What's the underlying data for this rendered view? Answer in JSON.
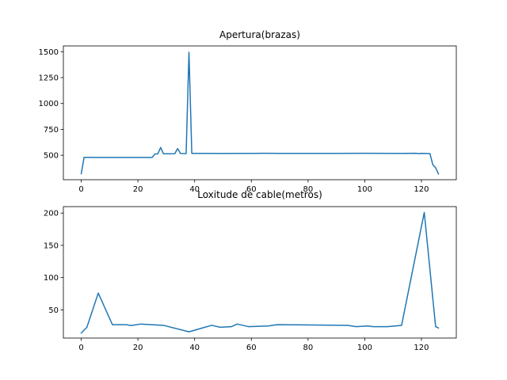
{
  "chart_data": [
    {
      "type": "line",
      "title": "Apertura(brazas)",
      "xlabel": "",
      "ylabel": "",
      "xlim": [
        -6.3,
        132.3
      ],
      "ylim": [
        264,
        1556
      ],
      "xticks": [
        0,
        20,
        40,
        60,
        80,
        100,
        120
      ],
      "yticks": [
        500,
        750,
        1000,
        1250,
        1500
      ],
      "grid": false,
      "legend": "none",
      "series": [
        {
          "color": "#1f77b4",
          "x": [
            0,
            1,
            2,
            5,
            8,
            12,
            15,
            20,
            25,
            26,
            27,
            28,
            29,
            30,
            33,
            34,
            35,
            37,
            38,
            39,
            40,
            45,
            50,
            55,
            60,
            65,
            70,
            80,
            90,
            100,
            110,
            118,
            119,
            120,
            122,
            123,
            124,
            125,
            126
          ],
          "y": [
            322,
            480,
            480,
            479,
            479,
            479,
            479,
            479,
            479,
            512,
            513,
            575,
            515,
            514,
            515,
            565,
            517,
            516,
            1495,
            518,
            518,
            518,
            517,
            518,
            518,
            519,
            518,
            518,
            518,
            519,
            518,
            519,
            516,
            518,
            517,
            516,
            410,
            380,
            320
          ]
        }
      ]
    },
    {
      "type": "line",
      "title": "Loxitude de cable(metros)",
      "xlabel": "",
      "ylabel": "",
      "xlim": [
        -6.3,
        132.3
      ],
      "ylim": [
        6.3,
        210
      ],
      "xticks": [
        0,
        20,
        40,
        60,
        80,
        100,
        120
      ],
      "yticks": [
        50,
        100,
        150,
        200
      ],
      "grid": false,
      "legend": "none",
      "series": [
        {
          "color": "#1f77b4",
          "x": [
            0,
            2,
            6,
            11,
            16,
            17,
            18,
            21,
            29,
            38,
            46,
            49,
            53,
            55,
            59,
            66,
            69,
            94,
            97,
            101,
            103,
            108,
            113,
            121,
            125,
            126
          ],
          "y": [
            14,
            23,
            76,
            27,
            27,
            26,
            26,
            28,
            26,
            16,
            26,
            23,
            24,
            28,
            24,
            25,
            27,
            26,
            24,
            25,
            24,
            24,
            26,
            201,
            24,
            22
          ]
        }
      ]
    }
  ]
}
